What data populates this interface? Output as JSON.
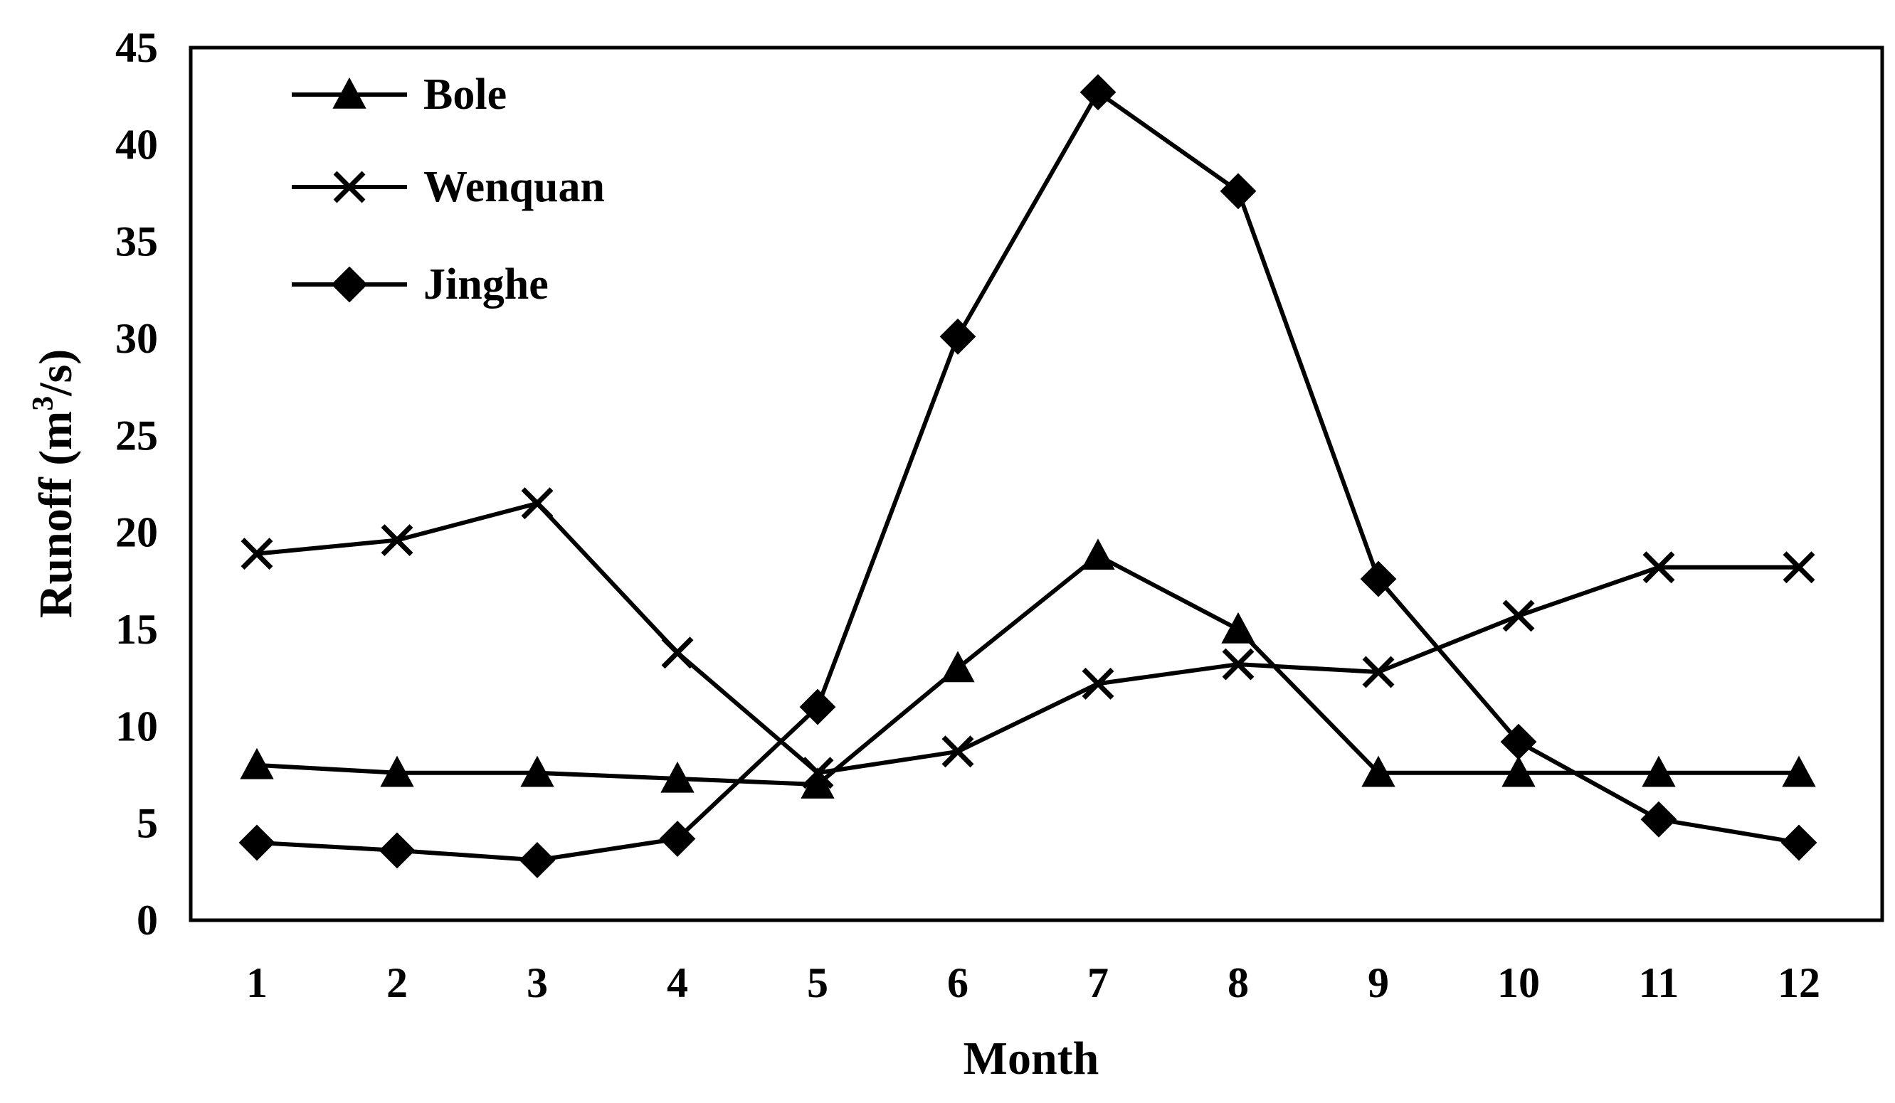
{
  "chart_data": {
    "type": "line",
    "title": "",
    "xlabel": "Month",
    "ylabel": {
      "prefix": "Runoff (m",
      "superscript": "3",
      "suffix": "/s)"
    },
    "categories": [
      "1",
      "2",
      "3",
      "4",
      "5",
      "6",
      "7",
      "8",
      "9",
      "10",
      "11",
      "12"
    ],
    "x": [
      1,
      2,
      3,
      4,
      5,
      6,
      7,
      8,
      9,
      10,
      11,
      12
    ],
    "ylim": [
      0,
      45
    ],
    "yticks": [
      "0",
      "5",
      "10",
      "15",
      "20",
      "25",
      "30",
      "35",
      "40",
      "45"
    ],
    "grid": false,
    "legend": "top-left",
    "series": [
      {
        "name": "Bole",
        "marker": "triangle",
        "color": "#000000",
        "values": [
          8.0,
          7.6,
          7.6,
          7.3,
          7.0,
          13.0,
          18.8,
          15.0,
          7.6,
          7.6,
          7.6,
          7.6
        ]
      },
      {
        "name": "Wenquan",
        "marker": "cross",
        "color": "#000000",
        "values": [
          18.9,
          19.6,
          21.5,
          13.8,
          7.6,
          8.7,
          12.2,
          13.2,
          12.8,
          15.7,
          18.2,
          18.2
        ]
      },
      {
        "name": "Jinghe",
        "marker": "diamond",
        "color": "#000000",
        "values": [
          4.0,
          3.6,
          3.1,
          4.2,
          11.0,
          30.1,
          42.7,
          37.6,
          17.6,
          9.2,
          5.2,
          4.0
        ]
      }
    ]
  }
}
